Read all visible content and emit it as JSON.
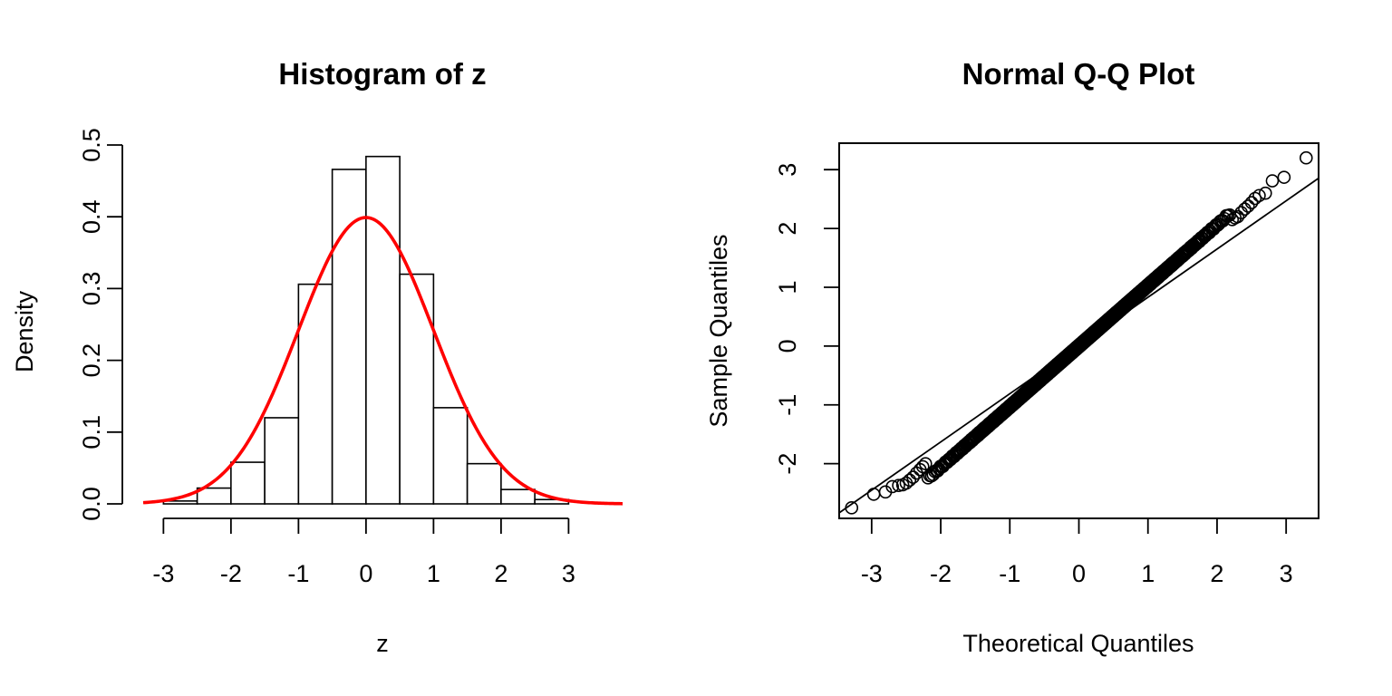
{
  "chart_data": [
    {
      "type": "bar",
      "title": "Histogram of z",
      "xlabel": "z",
      "ylabel": "Density",
      "xlim": [
        -3.3,
        3.8
      ],
      "ylim": [
        0,
        0.5
      ],
      "xticks": [
        -3,
        -2,
        -1,
        0,
        1,
        2,
        3
      ],
      "xtick_labels": [
        "-3",
        "-2",
        "-1",
        "0",
        "1",
        "2",
        "3"
      ],
      "yticks": [
        0,
        0.1,
        0.2,
        0.3,
        0.4,
        0.5
      ],
      "ytick_labels": [
        "0.0",
        "0.1",
        "0.2",
        "0.3",
        "0.4",
        "0.5"
      ],
      "bins": [
        {
          "x0": -3.0,
          "x1": -2.5,
          "density": 0.004
        },
        {
          "x0": -2.5,
          "x1": -2.0,
          "density": 0.022
        },
        {
          "x0": -2.0,
          "x1": -1.5,
          "density": 0.058
        },
        {
          "x0": -1.5,
          "x1": -1.0,
          "density": 0.12
        },
        {
          "x0": -1.0,
          "x1": -0.5,
          "density": 0.306
        },
        {
          "x0": -0.5,
          "x1": 0.0,
          "density": 0.466
        },
        {
          "x0": 0.0,
          "x1": 0.5,
          "density": 0.484
        },
        {
          "x0": 0.5,
          "x1": 1.0,
          "density": 0.32
        },
        {
          "x0": 1.0,
          "x1": 1.5,
          "density": 0.134
        },
        {
          "x0": 1.5,
          "x1": 2.0,
          "density": 0.056
        },
        {
          "x0": 2.0,
          "x1": 2.5,
          "density": 0.02
        },
        {
          "x0": 2.5,
          "x1": 3.0,
          "density": 0.006
        }
      ],
      "overlay_curve": {
        "type": "normal_density",
        "mean": 0,
        "sd": 1,
        "color": "#ff0000"
      },
      "bar_fill": "#ffffff",
      "bar_stroke": "#000000",
      "box": false
    },
    {
      "type": "scatter",
      "title": "Normal Q-Q Plot",
      "xlabel": "Theoretical Quantiles",
      "ylabel": "Sample Quantiles",
      "xlim": [
        -3.47,
        3.47
      ],
      "ylim": [
        -2.93,
        3.45
      ],
      "xticks": [
        -3,
        -2,
        -1,
        0,
        1,
        2,
        3
      ],
      "xtick_labels": [
        "-3",
        "-2",
        "-1",
        "0",
        "1",
        "2",
        "3"
      ],
      "yticks": [
        -2,
        -1,
        0,
        1,
        2,
        3
      ],
      "ytick_labels": [
        "-2",
        "-1",
        "0",
        "1",
        "2",
        "3"
      ],
      "box": true,
      "marker": "open-circle",
      "reference_line": {
        "intercept": 0.01,
        "slope": 0.82
      },
      "qq_model": {
        "n": 1000,
        "sample_sd": 1.03,
        "tail_points": [
          {
            "x": -3.29,
            "y": -2.75
          },
          {
            "x": -2.97,
            "y": -2.52
          },
          {
            "x": -2.8,
            "y": -2.48
          },
          {
            "x": -2.7,
            "y": -2.39
          },
          {
            "x": -2.61,
            "y": -2.37
          },
          {
            "x": -2.55,
            "y": -2.36
          },
          {
            "x": -2.5,
            "y": -2.33
          },
          {
            "x": -2.45,
            "y": -2.28
          },
          {
            "x": -2.4,
            "y": -2.23
          },
          {
            "x": -2.35,
            "y": -2.16
          },
          {
            "x": -2.3,
            "y": -2.1
          },
          {
            "x": -2.26,
            "y": -2.05
          },
          {
            "x": -2.22,
            "y": -2.0
          },
          {
            "x": 2.22,
            "y": 2.15
          },
          {
            "x": 2.26,
            "y": 2.18
          },
          {
            "x": 2.3,
            "y": 2.2
          },
          {
            "x": 2.35,
            "y": 2.27
          },
          {
            "x": 2.4,
            "y": 2.33
          },
          {
            "x": 2.45,
            "y": 2.38
          },
          {
            "x": 2.5,
            "y": 2.44
          },
          {
            "x": 2.55,
            "y": 2.51
          },
          {
            "x": 2.61,
            "y": 2.56
          },
          {
            "x": 2.7,
            "y": 2.6
          },
          {
            "x": 2.8,
            "y": 2.81
          },
          {
            "x": 2.97,
            "y": 2.87
          },
          {
            "x": 3.29,
            "y": 3.2
          }
        ]
      }
    }
  ]
}
